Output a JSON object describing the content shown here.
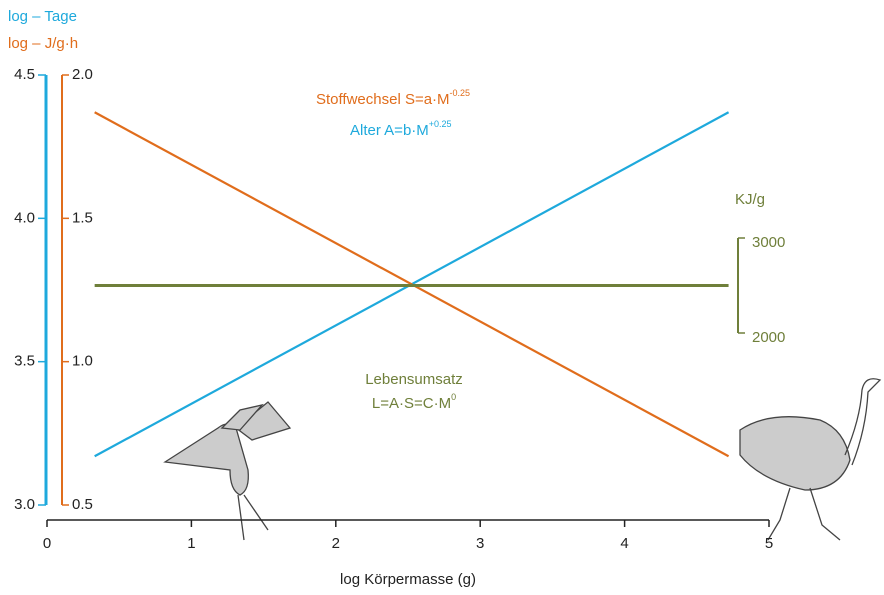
{
  "chart_data": {
    "type": "line",
    "ylabel": "log – Tage",
    "y2label": "log – J/g·h",
    "y3label": "KJ/g",
    "xlabel": "log Körpermasse (g)",
    "annotations": [
      {
        "text": "Stoffwechsel S=a·M",
        "sup": "-0.25",
        "color": "#e06d1c"
      },
      {
        "text": "Alter A=b·M",
        "sup": "+0.25",
        "color": "#1ea9dc"
      },
      {
        "text": "Lebensumsatz",
        "color": "#6f7f3a"
      },
      {
        "text": "L=A·S=C·M",
        "sup": "0",
        "color": "#6f7f3a"
      }
    ],
    "x": [
      0.33,
      4.72
    ],
    "series": [
      {
        "color": "#1ea9dc",
        "values": [
          3.17,
          4.37
        ]
      },
      {
        "color": "#e06d1c",
        "axis": "y2",
        "values": [
          1.87,
          0.67
        ]
      },
      {
        "color": "#6f7f3a",
        "axis": "y3",
        "values": [
          2500,
          2500
        ]
      }
    ],
    "xlim": [
      0,
      5
    ],
    "xticks": [
      0,
      1,
      2,
      3,
      4,
      5
    ],
    "ylim": [
      3.0,
      4.5
    ],
    "yticks": [
      {
        "value": 3.0,
        "label": "3.0"
      },
      3.5,
      {
        "value": 4.0,
        "label": "4.0"
      },
      4.5
    ],
    "y2lim": [
      0.5,
      2.0
    ],
    "y2ticks": [
      0.5,
      {
        "value": 1.0,
        "label": "1.0"
      },
      1.5,
      {
        "value": 2.0,
        "label": "2.0"
      }
    ],
    "y3lim": [
      2000,
      3000
    ],
    "y3ticks": [
      2000,
      3000
    ]
  }
}
